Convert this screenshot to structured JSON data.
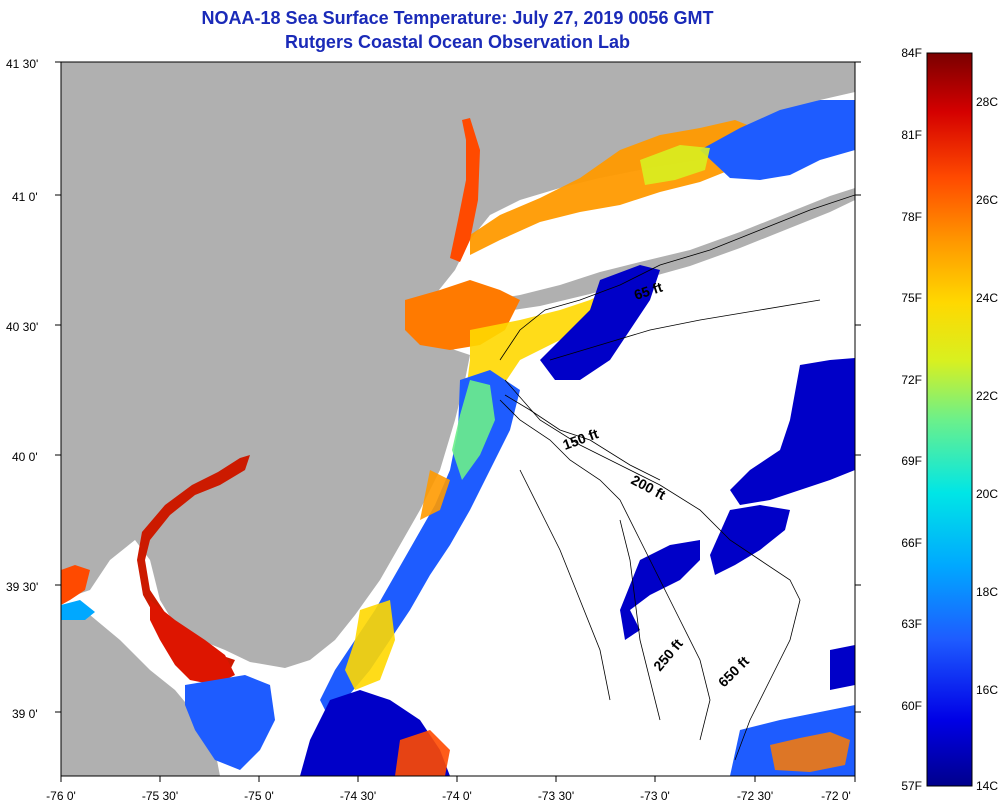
{
  "title": "NOAA-18 Sea Surface Temperature:  July 27, 2019 0056 GMT",
  "subtitle": "Rutgers Coastal Ocean Observation Lab",
  "lat_ticks": [
    "41 30'",
    "41 0'",
    "40 30'",
    "40 0'",
    "39 30'",
    "39 0'"
  ],
  "lon_ticks": [
    "-76 0'",
    "-75 30'",
    "-75 0'",
    "-74 30'",
    "-74 0'",
    "-73 30'",
    "-73 0'",
    "-72 30'",
    "-72 0'"
  ],
  "depth_labels": [
    "65 ft",
    "150 ft",
    "200 ft",
    "250 ft",
    "650 ft"
  ],
  "colorbar": {
    "fahrenheit": [
      "84F",
      "81F",
      "78F",
      "75F",
      "72F",
      "69F",
      "66F",
      "63F",
      "60F",
      "57F"
    ],
    "celsius": [
      "28C",
      "26C",
      "24C",
      "22C",
      "20C",
      "18C",
      "16C",
      "14C"
    ],
    "colors": [
      "#7a0000",
      "#d40000",
      "#ff4a00",
      "#ff9a00",
      "#ffd800",
      "#d8f020",
      "#6cf08a",
      "#00e6e6",
      "#00a8ff",
      "#1e5cff",
      "#0000e6",
      "#00008c"
    ]
  },
  "colors": {
    "land": "#b0b0b0",
    "water_nodata": "#ffffff",
    "title": "#1a2ab8"
  }
}
